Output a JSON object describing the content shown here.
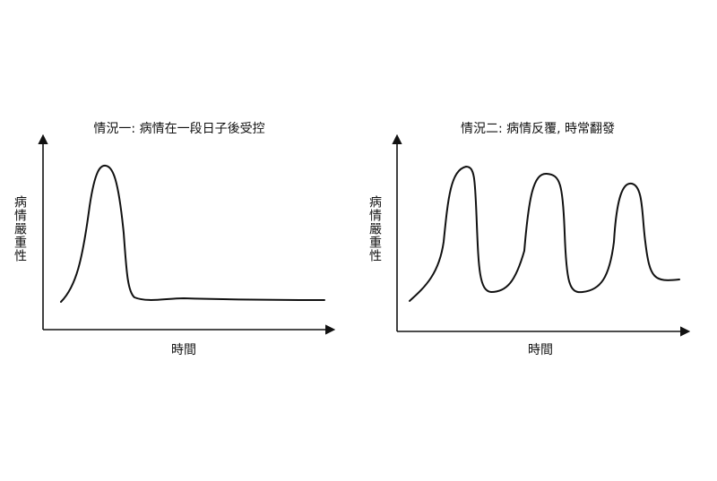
{
  "panels": [
    {
      "title": "情況一: 病情在一段日子後受控",
      "y_label": "病情嚴重性",
      "x_label": "時間"
    },
    {
      "title": "情況二: 病情反覆, 時常翻發",
      "y_label": "病情嚴重性",
      "x_label": "時間"
    }
  ]
}
